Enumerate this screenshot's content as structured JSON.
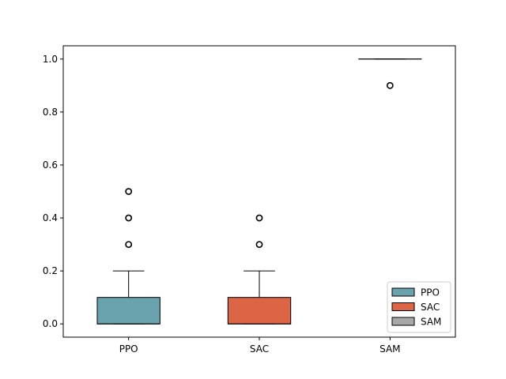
{
  "chart_data": {
    "type": "box",
    "categories": [
      "PPO",
      "SAC",
      "SAM"
    ],
    "ylim": [
      -0.05,
      1.05
    ],
    "yticks": [
      0.0,
      0.2,
      0.4,
      0.6,
      0.8,
      1.0
    ],
    "ytick_labels": [
      "0.0",
      "0.2",
      "0.4",
      "0.6",
      "0.8",
      "1.0"
    ],
    "grid": false,
    "legend": "bottom-right",
    "series": [
      {
        "name": "PPO",
        "color": "#6aa2ad",
        "whisker_low": 0.0,
        "q1": 0.0,
        "median": 0.0,
        "q3": 0.1,
        "whisker_high": 0.2,
        "outliers": [
          0.3,
          0.4,
          0.5
        ]
      },
      {
        "name": "SAC",
        "color": "#db6544",
        "whisker_low": 0.0,
        "q1": 0.0,
        "median": 0.0,
        "q3": 0.1,
        "whisker_high": 0.2,
        "outliers": [
          0.3,
          0.4
        ]
      },
      {
        "name": "SAM",
        "color": "#a8a8a8",
        "whisker_low": 1.0,
        "q1": 1.0,
        "median": 1.0,
        "q3": 1.0,
        "whisker_high": 1.0,
        "outliers": [
          0.9
        ]
      }
    ]
  }
}
